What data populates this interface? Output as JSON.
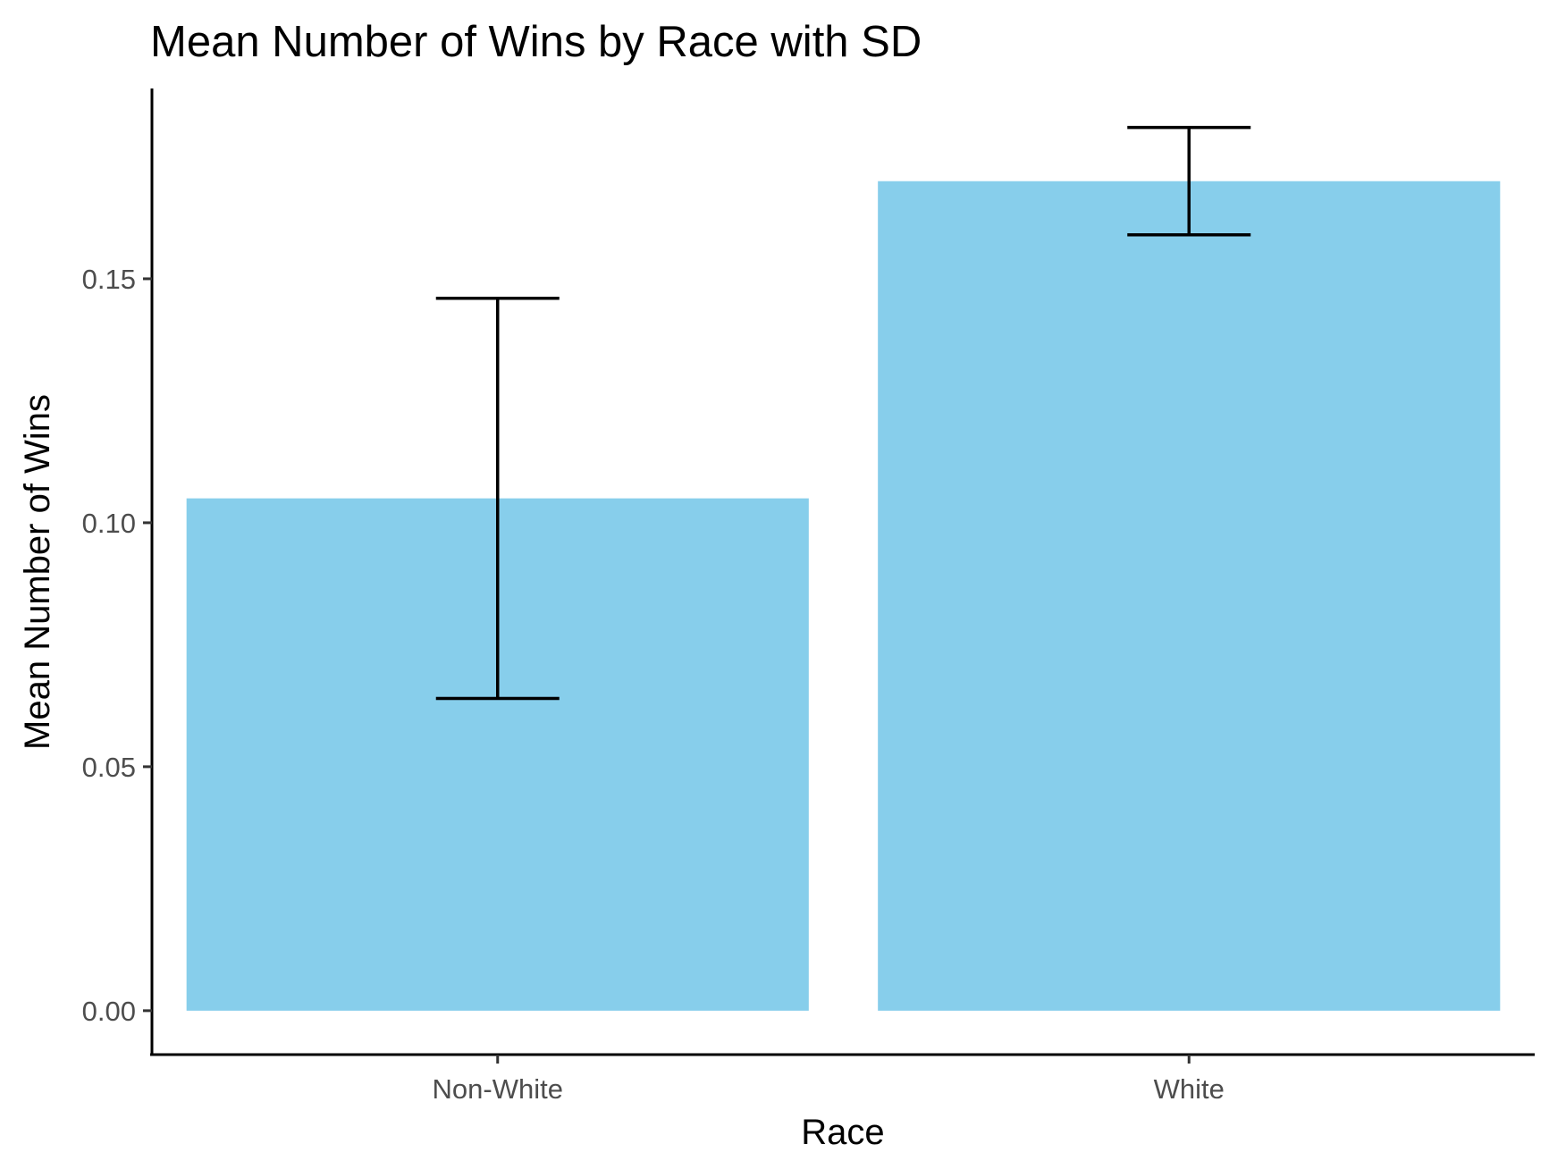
{
  "chart_data": {
    "type": "bar",
    "title": "Mean Number of Wins by Race with SD",
    "xlabel": "Race",
    "ylabel": "Mean Number of Wins",
    "categories": [
      "Non-White",
      "White"
    ],
    "values": [
      0.105,
      0.17
    ],
    "error_low": [
      0.064,
      0.159
    ],
    "error_high": [
      0.146,
      0.181
    ],
    "ylim": [
      -0.009,
      0.189
    ],
    "yticks": [
      0.0,
      0.05,
      0.1,
      0.15
    ],
    "ytick_labels": [
      "0.00",
      "0.05",
      "0.10",
      "0.15"
    ],
    "bar_color": "#87CEEB",
    "error_bar_color": "#000000",
    "grid": false,
    "legend": "none"
  }
}
